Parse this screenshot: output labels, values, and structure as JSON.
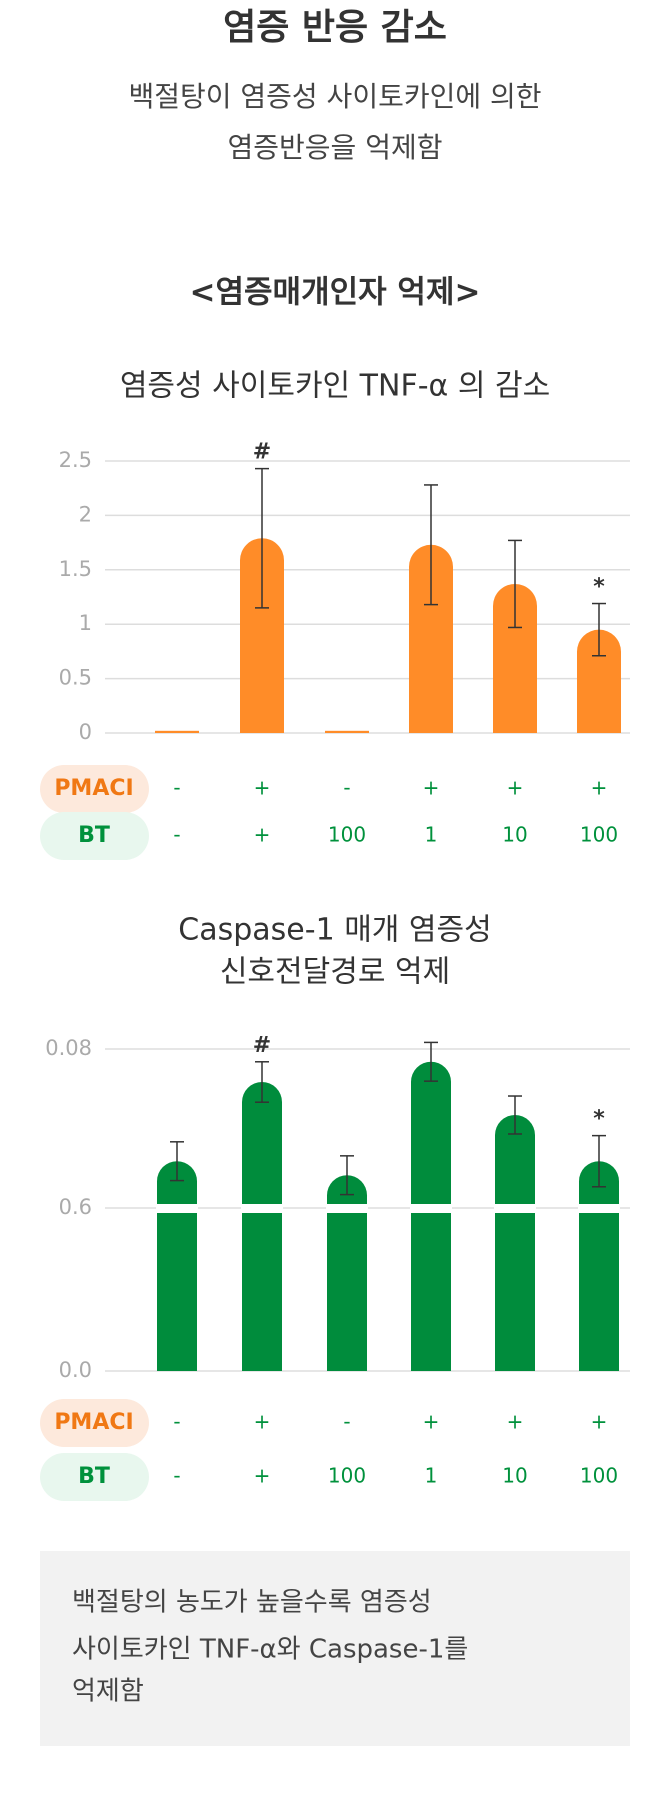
{
  "header": {
    "title": "염증 반응 감소",
    "subtitle": [
      "백절탕이 염증성 사이토카인에 의한",
      "염증반응을 억제함"
    ]
  },
  "section_title": "<염증매개인자 억제>",
  "chart_data": [
    {
      "type": "bar",
      "title": [
        "염증성 사이토카인 TNF-α 의 감소"
      ],
      "color": "#ff8c28",
      "values": [
        0.02,
        1.79,
        0.02,
        1.73,
        1.37,
        0.95
      ],
      "errors": [
        null,
        0.64,
        null,
        0.55,
        0.4,
        0.24
      ],
      "markers": [
        null,
        "#",
        null,
        null,
        null,
        "*"
      ],
      "ylim": [
        0,
        2.5
      ],
      "yticks": [
        0,
        0.5,
        1,
        1.5,
        2,
        2.5
      ],
      "grid": true,
      "conditions": [
        {
          "name": "PMACI",
          "values": [
            "-",
            "+",
            "-",
            "+",
            "+",
            "+"
          ]
        },
        {
          "name": "BT",
          "values": [
            "-",
            "+",
            "100",
            "1",
            "10",
            "100"
          ]
        }
      ]
    },
    {
      "type": "broken-bar",
      "title": [
        "Caspase-1 매개 염증성",
        "신호전달경로 억제"
      ],
      "color": "#008c3c",
      "values": [
        0.0528,
        0.072,
        0.0494,
        0.0769,
        0.064,
        0.0528
      ],
      "errors": [
        0.0047,
        0.0049,
        0.0047,
        0.0047,
        0.0046,
        0.0062
      ],
      "markers": [
        null,
        "#",
        null,
        null,
        null,
        "*"
      ],
      "ylim": [
        0,
        0.6
      ],
      "yticks": [
        {
          "value": 0,
          "label": "0.0"
        },
        0.6
      ],
      "y_upper_lim": [
        0.04,
        0.08
      ],
      "y_upper_ticks": [
        0.08
      ],
      "grid": true,
      "conditions": [
        {
          "name": "PMACI",
          "values": [
            "-",
            "+",
            "-",
            "+",
            "+",
            "+"
          ]
        },
        {
          "name": "BT",
          "values": [
            "-",
            "+",
            "100",
            "1",
            "10",
            "100"
          ]
        }
      ]
    }
  ],
  "note": [
    "백절탕의 농도가 높을수록 염증성",
    "사이토카인  TNF-α와 Caspase-1를",
    "억제함"
  ]
}
